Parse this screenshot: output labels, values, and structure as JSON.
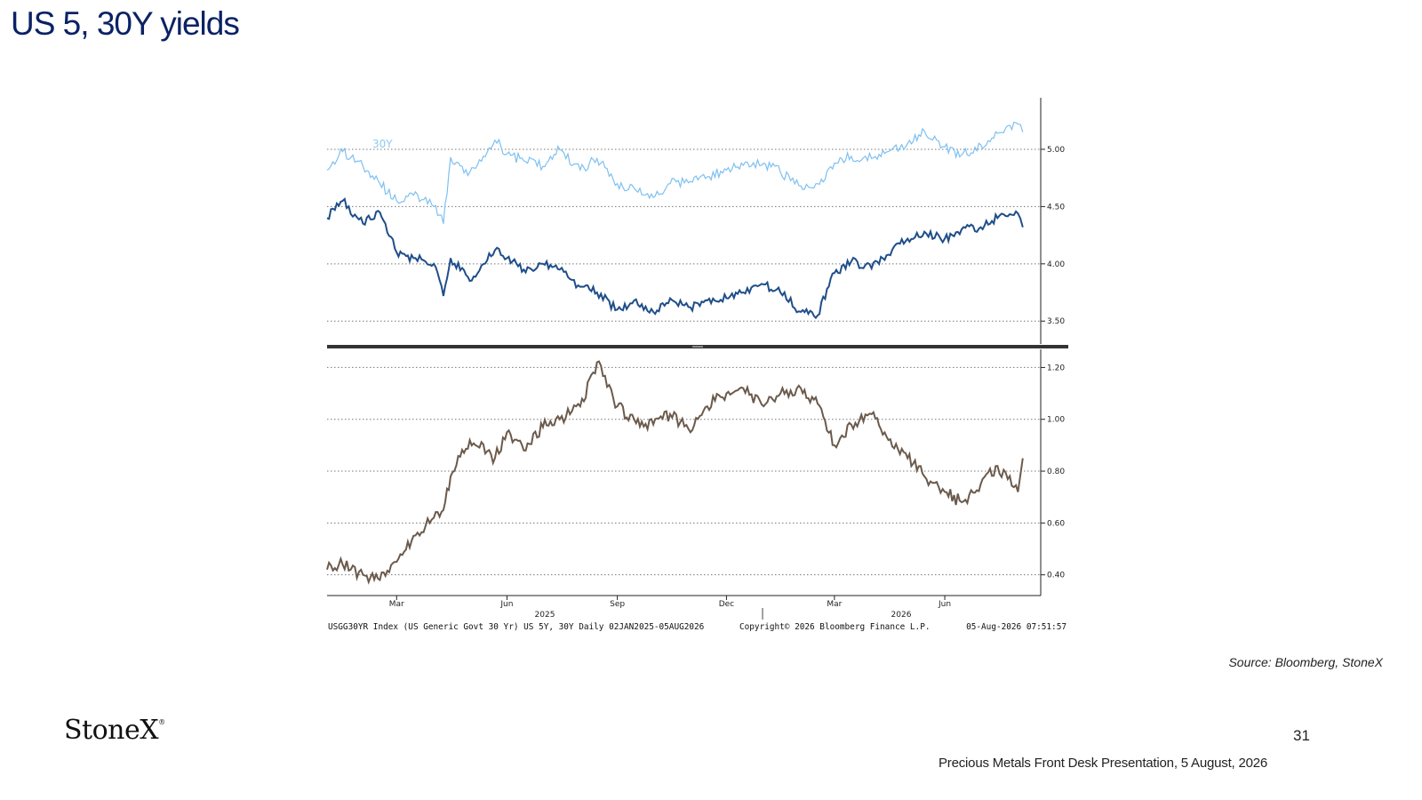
{
  "title": "US 5, 30Y yields",
  "source": "Source: Bloomberg, StoneX",
  "logo": {
    "text": "StoneX",
    "mark": "®"
  },
  "page_number": "31",
  "footer": "Precious Metals Front Desk Presentation, 5 August, 2026",
  "colors": {
    "title": "#0b2265",
    "series_30y": "#7ec0f0",
    "series_5y": "#1f4e89",
    "series_spread": "#6b5a4c",
    "divider": "#333333"
  },
  "chart_data": [
    {
      "type": "line",
      "title": "",
      "ylim": [
        3.3,
        5.45
      ],
      "yticks": [
        "5.00",
        "4.50",
        "4.00",
        "3.50"
      ],
      "xlabel": "",
      "ylabel": "",
      "grid": true,
      "series": [
        {
          "name": "30Y",
          "x": [
            "2025-01-02",
            "2025-01-15",
            "2025-02-01",
            "2025-02-15",
            "2025-03-01",
            "2025-03-15",
            "2025-04-01",
            "2025-04-09",
            "2025-04-15",
            "2025-05-01",
            "2025-05-22",
            "2025-06-01",
            "2025-06-15",
            "2025-07-01",
            "2025-07-15",
            "2025-08-01",
            "2025-08-15",
            "2025-09-01",
            "2025-09-15",
            "2025-10-01",
            "2025-10-15",
            "2025-11-01",
            "2025-11-15",
            "2025-12-01",
            "2025-12-15",
            "2026-01-01",
            "2026-01-15",
            "2026-02-01",
            "2026-02-15",
            "2026-03-01",
            "2026-03-15",
            "2026-04-01",
            "2026-04-15",
            "2026-05-01",
            "2026-05-15",
            "2026-06-01",
            "2026-06-15",
            "2026-07-01",
            "2026-07-15",
            "2026-08-01",
            "2026-08-05"
          ],
          "values": [
            4.82,
            4.98,
            4.85,
            4.7,
            4.55,
            4.6,
            4.5,
            4.35,
            4.93,
            4.8,
            5.08,
            4.96,
            4.9,
            4.85,
            5.0,
            4.82,
            4.92,
            4.7,
            4.66,
            4.58,
            4.7,
            4.72,
            4.76,
            4.82,
            4.86,
            4.88,
            4.8,
            4.68,
            4.7,
            4.88,
            4.94,
            4.92,
            4.98,
            5.05,
            5.16,
            5.02,
            4.95,
            5.04,
            5.14,
            5.22,
            5.15
          ]
        },
        {
          "x": [
            "2025-01-02",
            "2025-01-15",
            "2025-02-01",
            "2025-02-15",
            "2025-03-01",
            "2025-03-15",
            "2025-04-01",
            "2025-04-09",
            "2025-04-15",
            "2025-05-01",
            "2025-05-22",
            "2025-06-01",
            "2025-06-15",
            "2025-07-01",
            "2025-07-15",
            "2025-08-01",
            "2025-08-15",
            "2025-09-01",
            "2025-09-15",
            "2025-10-01",
            "2025-10-15",
            "2025-11-01",
            "2025-11-15",
            "2025-12-01",
            "2025-12-15",
            "2026-01-01",
            "2026-01-15",
            "2026-02-01",
            "2026-02-15",
            "2026-03-01",
            "2026-03-15",
            "2026-04-01",
            "2026-04-15",
            "2026-05-01",
            "2026-05-15",
            "2026-06-01",
            "2026-06-15",
            "2026-07-01",
            "2026-07-15",
            "2026-08-01",
            "2026-08-05"
          ],
          "values": [
            4.4,
            4.55,
            4.35,
            4.45,
            4.1,
            4.05,
            4.0,
            3.72,
            4.05,
            3.85,
            4.12,
            4.05,
            3.95,
            4.0,
            3.95,
            3.8,
            3.75,
            3.6,
            3.68,
            3.58,
            3.7,
            3.62,
            3.68,
            3.7,
            3.75,
            3.82,
            3.75,
            3.58,
            3.55,
            3.92,
            4.02,
            3.96,
            4.08,
            4.22,
            4.28,
            4.22,
            4.3,
            4.32,
            4.4,
            4.44,
            4.32
          ]
        }
      ]
    },
    {
      "type": "line",
      "title": "",
      "ylim": [
        0.32,
        1.27
      ],
      "yticks": [
        "1.20",
        "1.00",
        "0.80",
        "0.60",
        "0.40"
      ],
      "xlabel": "",
      "ylabel": "",
      "grid": true,
      "series": [
        {
          "x": [
            "2025-01-02",
            "2025-01-15",
            "2025-02-01",
            "2025-02-15",
            "2025-03-01",
            "2025-03-15",
            "2025-04-01",
            "2025-04-09",
            "2025-04-15",
            "2025-05-01",
            "2025-05-22",
            "2025-06-01",
            "2025-06-15",
            "2025-07-01",
            "2025-07-15",
            "2025-08-01",
            "2025-08-15",
            "2025-09-01",
            "2025-09-15",
            "2025-10-01",
            "2025-10-15",
            "2025-11-01",
            "2025-11-15",
            "2025-12-01",
            "2025-12-15",
            "2026-01-01",
            "2026-01-15",
            "2026-02-01",
            "2026-02-15",
            "2026-03-01",
            "2026-03-15",
            "2026-04-01",
            "2026-04-15",
            "2026-05-01",
            "2026-05-15",
            "2026-06-01",
            "2026-06-15",
            "2026-07-01",
            "2026-07-15",
            "2026-08-01",
            "2026-08-05"
          ],
          "values": [
            0.42,
            0.44,
            0.4,
            0.38,
            0.45,
            0.55,
            0.62,
            0.65,
            0.78,
            0.92,
            0.85,
            0.95,
            0.88,
            0.97,
            1.0,
            1.05,
            1.22,
            1.05,
            1.0,
            0.98,
            1.02,
            0.95,
            1.05,
            1.1,
            1.12,
            1.05,
            1.1,
            1.12,
            1.06,
            0.9,
            0.98,
            1.02,
            0.92,
            0.85,
            0.78,
            0.72,
            0.68,
            0.75,
            0.82,
            0.72,
            0.85
          ]
        }
      ]
    }
  ],
  "chart_axis": {
    "x_month_labels": [
      {
        "label": "Mar",
        "date": "2025-03-01"
      },
      {
        "label": "Jun",
        "date": "2025-06-01"
      },
      {
        "label": "Sep",
        "date": "2025-09-01"
      },
      {
        "label": "Dec",
        "date": "2025-12-01"
      },
      {
        "label": "Mar",
        "date": "2026-03-01"
      },
      {
        "label": "Jun",
        "date": "2026-06-01"
      }
    ],
    "x_year_labels": [
      "2025",
      "2026"
    ],
    "x_range": [
      "2025-01-02",
      "2026-08-20"
    ],
    "series_label_30y": "30Y"
  },
  "chart_footer": {
    "description": "USGG30YR Index (US Generic Govt 30 Yr) US 5Y, 30Y Daily 02JAN2025-05AUG2026",
    "copyright": "Copyright© 2026 Bloomberg Finance L.P.",
    "timestamp": "05-Aug-2026 07:51:57"
  }
}
